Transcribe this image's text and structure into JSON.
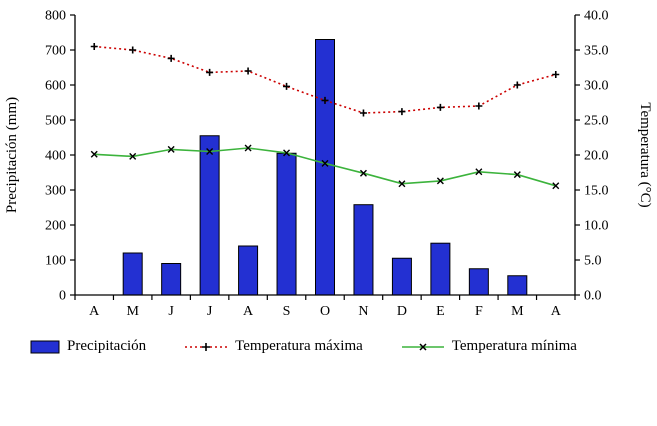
{
  "chart_data": {
    "type": "bar",
    "title": "",
    "categories": [
      "A",
      "M",
      "J",
      "J",
      "A",
      "S",
      "O",
      "N",
      "D",
      "E",
      "F",
      "M",
      "A"
    ],
    "series": [
      {
        "name": "Precipitación",
        "kind": "bar",
        "axis": "left",
        "color": "#2330d2",
        "values": [
          0,
          120,
          90,
          455,
          140,
          405,
          730,
          258,
          105,
          148,
          75,
          55,
          0
        ]
      },
      {
        "name": "Temperatura máxima",
        "kind": "line",
        "axis": "right",
        "color": "#cc0000",
        "line_style": "dotted",
        "marker": "plus",
        "values": [
          35.5,
          35.0,
          33.8,
          31.8,
          32.0,
          29.8,
          27.8,
          26.0,
          26.2,
          26.8,
          27.0,
          30.0,
          31.5
        ]
      },
      {
        "name": "Temperatura mínima",
        "kind": "line",
        "axis": "right",
        "color": "#3cb33c",
        "line_style": "solid",
        "marker": "x",
        "values": [
          20.1,
          19.8,
          20.8,
          20.5,
          21.0,
          20.3,
          18.8,
          17.4,
          15.9,
          16.3,
          17.6,
          17.2,
          15.6
        ]
      }
    ],
    "left_axis": {
      "label": "Precipitación (mm)",
      "min": 0,
      "max": 800,
      "step": 100,
      "decimals": 0
    },
    "right_axis": {
      "label": "Temperatura (°C)",
      "min": 0,
      "max": 40,
      "step": 5,
      "decimals": 1
    },
    "grid": false,
    "legend_position": "bottom"
  }
}
